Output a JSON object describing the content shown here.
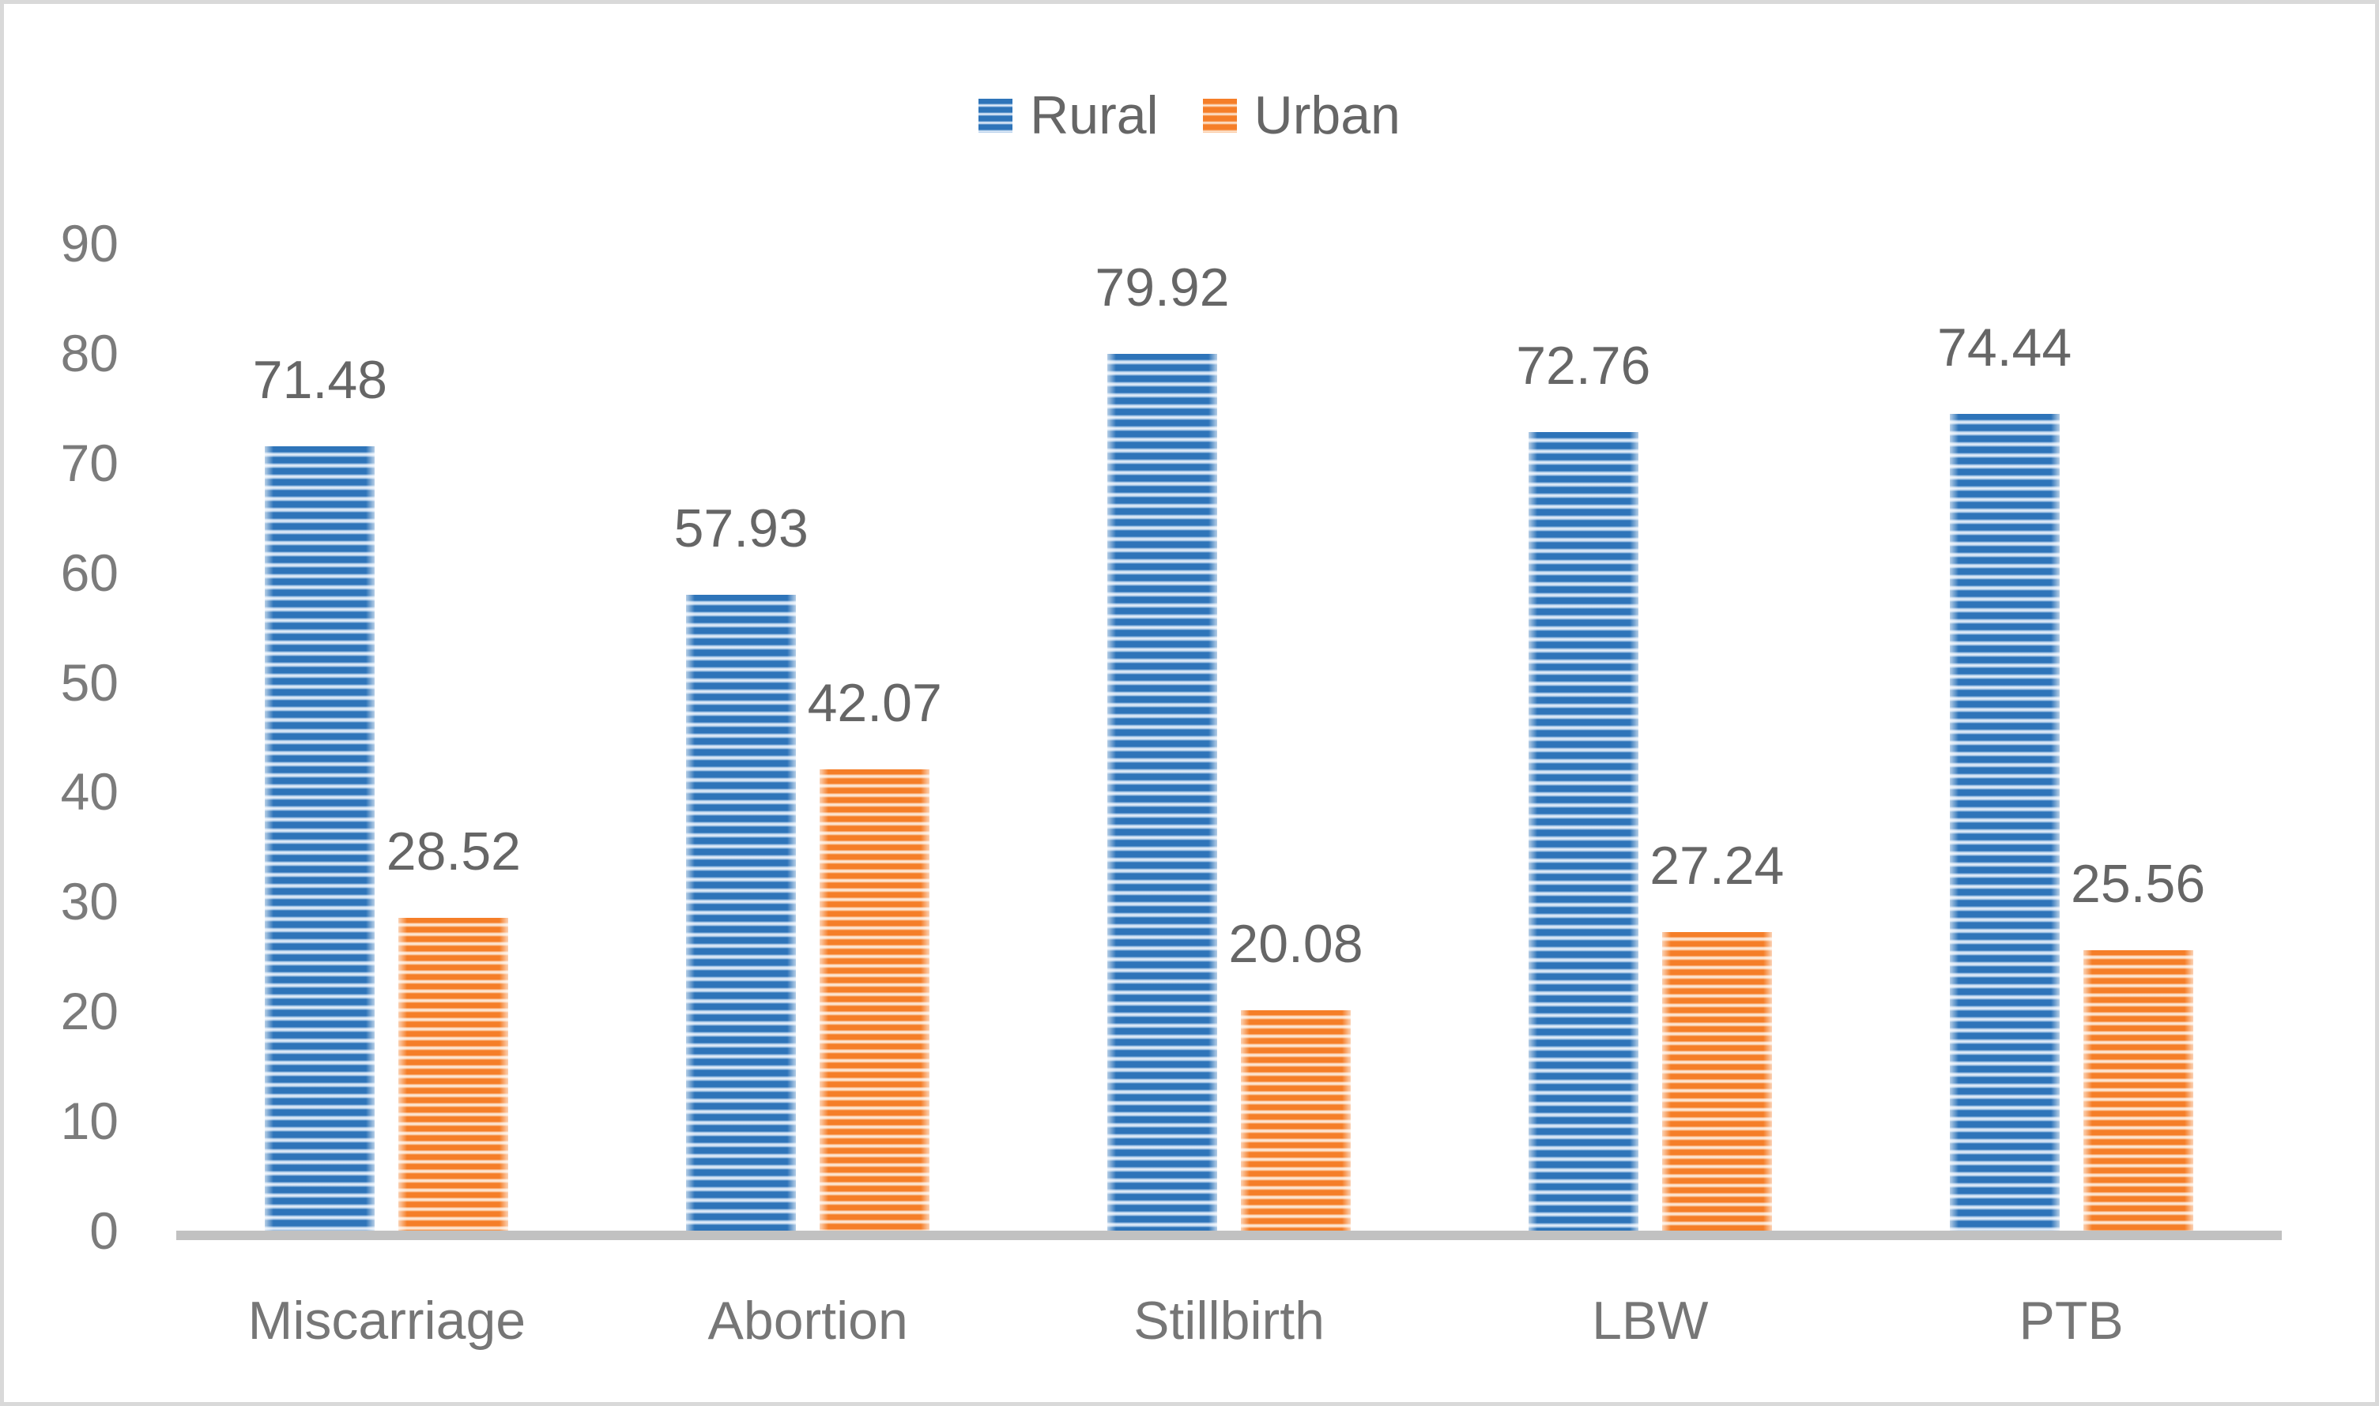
{
  "figure": {
    "background": "#FFFFFF",
    "border_color": "#D9D9D9"
  },
  "legend": {
    "position": "top-center",
    "items": [
      {
        "label": "Rural",
        "swatch": "striped-horizontal",
        "color": "#2E74B9"
      },
      {
        "label": "Urban",
        "swatch": "striped-horizontal",
        "color": "#F57E28"
      }
    ]
  },
  "axes": {
    "y_tick_labels": [
      "0",
      "10",
      "20",
      "30",
      "40",
      "50",
      "60",
      "70",
      "80",
      "90"
    ],
    "x_axis_line_color": "#C1C1C1",
    "tick_label_color": "#7B7B7B"
  },
  "chart_data": {
    "type": "bar",
    "title": "",
    "xlabel": "",
    "ylabel": "",
    "categories": [
      "Miscarriage",
      "Abortion",
      "Stillbirth",
      "LBW",
      "PTB"
    ],
    "series": [
      {
        "name": "Rural",
        "color": "#2E74B9",
        "pattern": "light-horizontal-stripes",
        "values": [
          71.48,
          57.93,
          79.92,
          72.76,
          74.44
        ]
      },
      {
        "name": "Urban",
        "color": "#F57E28",
        "pattern": "light-horizontal-stripes",
        "values": [
          28.52,
          42.07,
          20.08,
          27.24,
          25.56
        ]
      }
    ],
    "data_labels": [
      "71.48",
      "57.93",
      "79.92",
      "72.76",
      "74.44",
      "28.52",
      "42.07",
      "20.08",
      "27.24",
      "25.56"
    ],
    "ylim": [
      0,
      90
    ],
    "yticks": [
      0,
      10,
      20,
      30,
      40,
      50,
      60,
      70,
      80,
      90
    ],
    "grid": false,
    "legend_position": "top"
  }
}
